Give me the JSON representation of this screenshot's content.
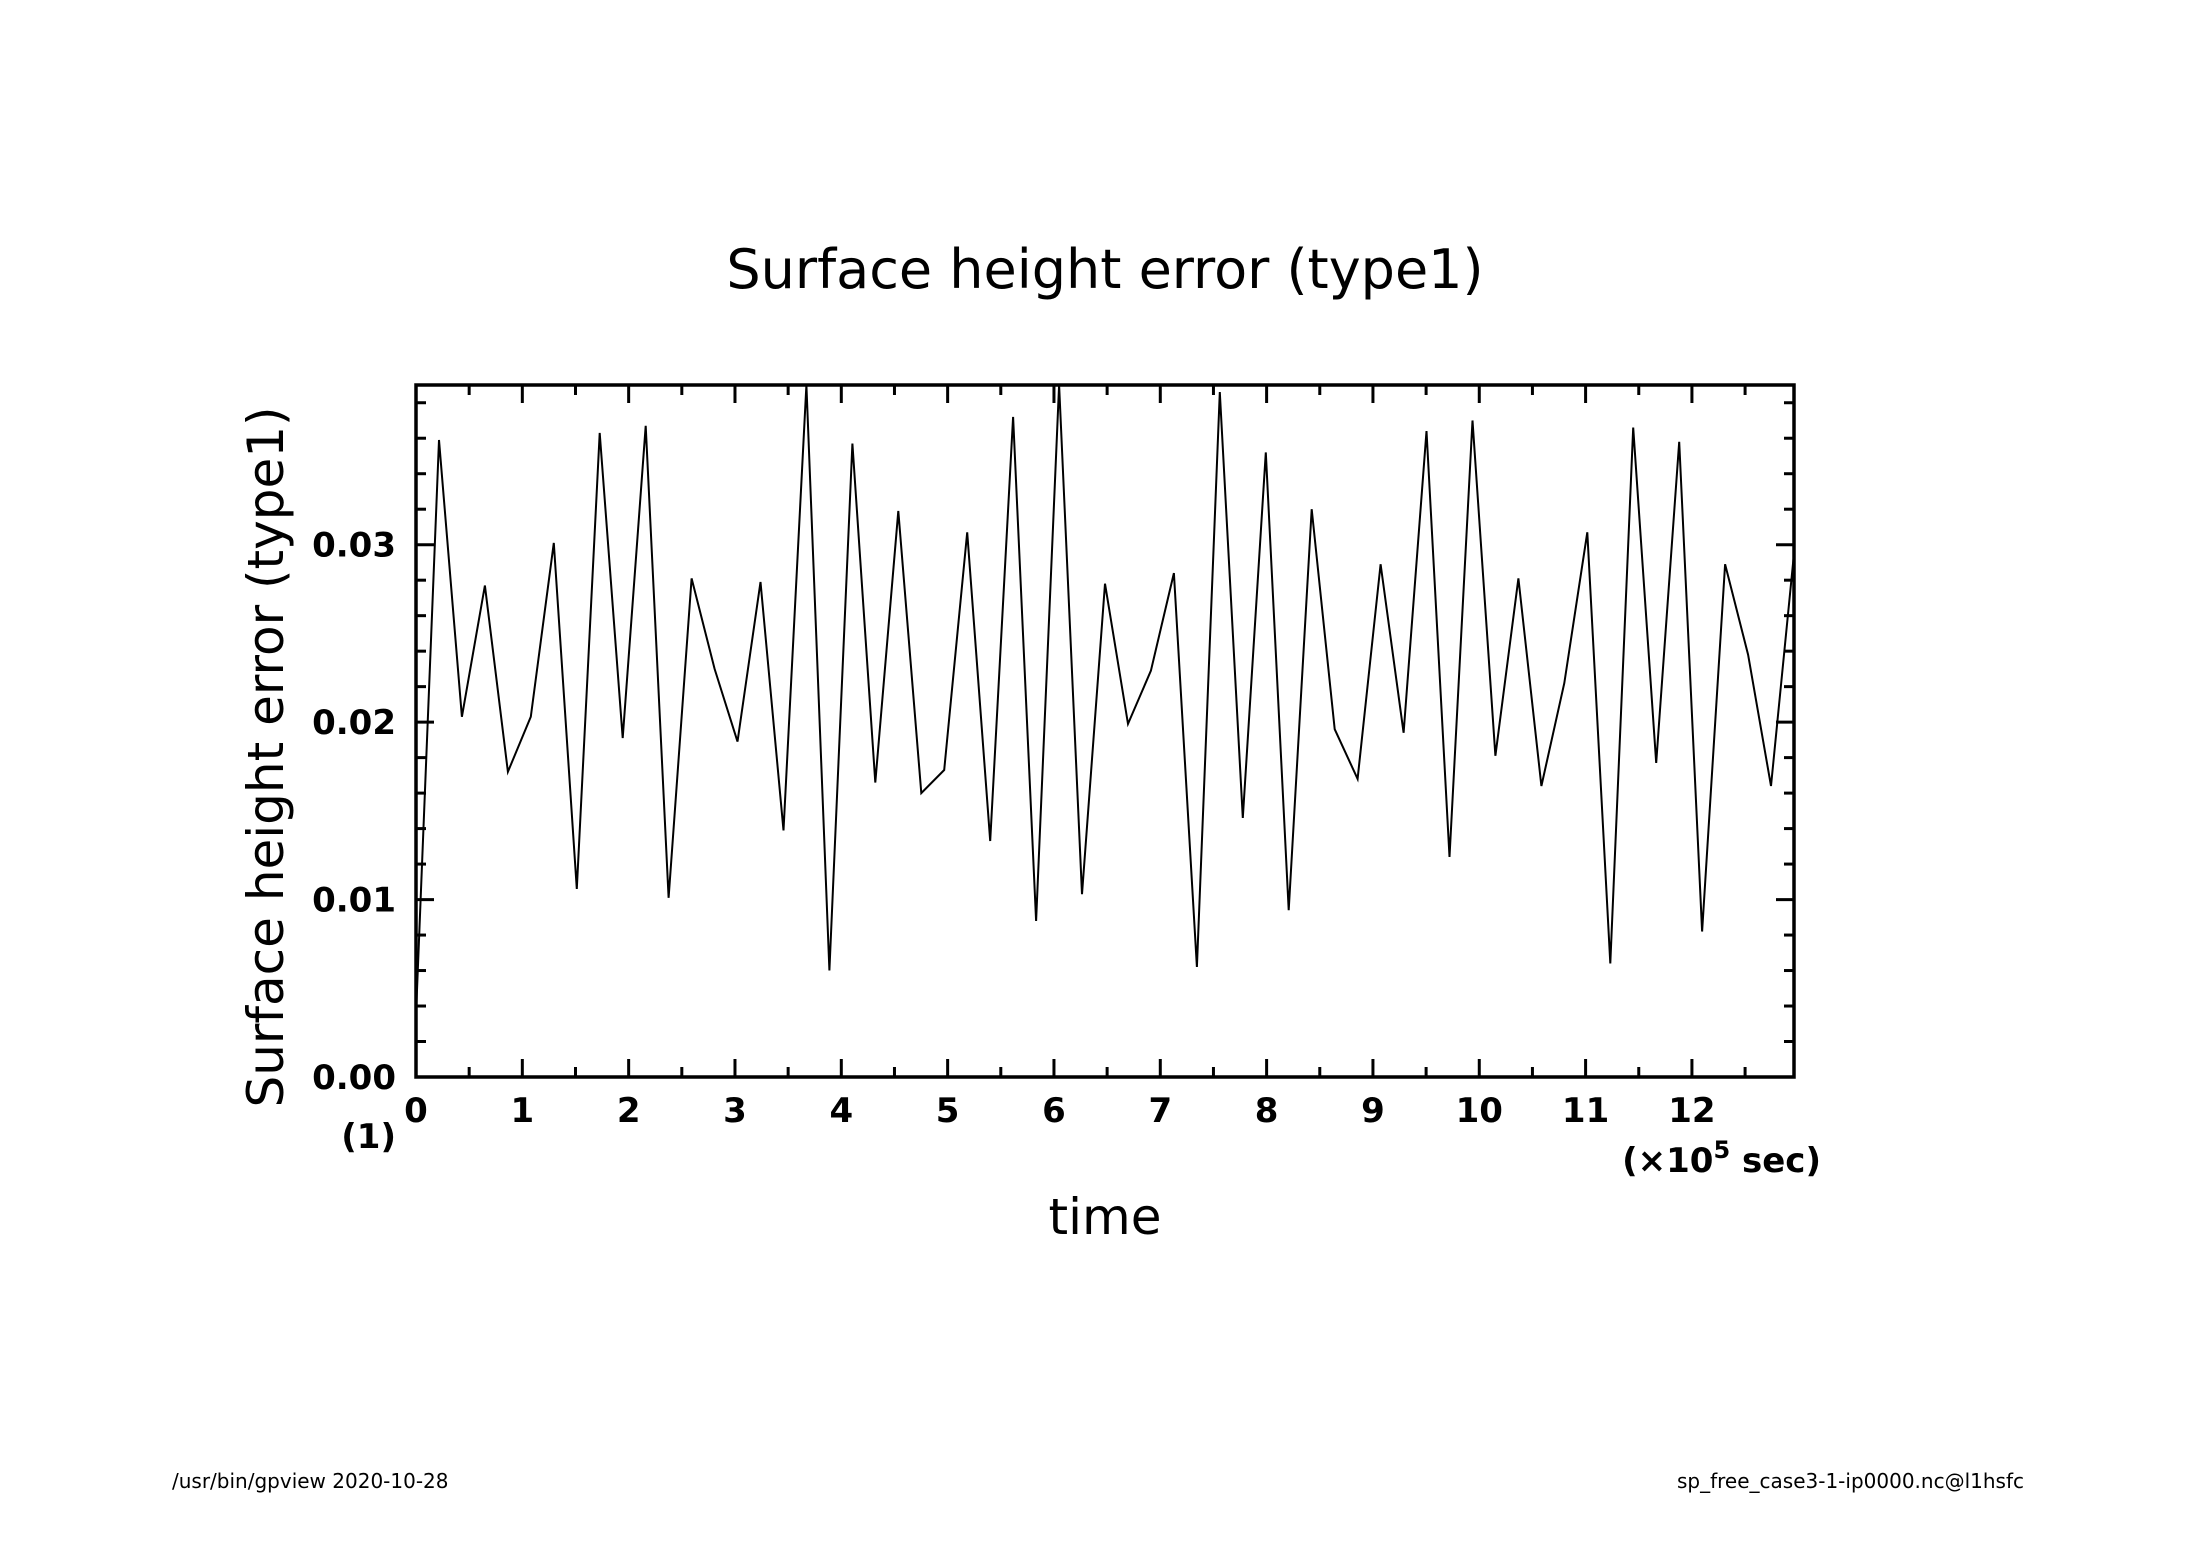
{
  "chart_data": {
    "type": "line",
    "title": "Surface height error (type1)",
    "xlabel": "time",
    "ylabel": "Surface height error (type1)",
    "x_unit_label_prefix": "(×10",
    "x_unit_label_exp": "5",
    "x_unit_label_suffix": " sec)",
    "y_unit_label": "(1)",
    "xlim": [
      0,
      12.96
    ],
    "ylim": [
      0,
      0.039
    ],
    "x_ticks": [
      "0",
      "1",
      "2",
      "3",
      "4",
      "5",
      "6",
      "7",
      "8",
      "9",
      "10",
      "11",
      "12"
    ],
    "y_ticks": [
      "0.00",
      "0.01",
      "0.02",
      "0.03"
    ],
    "grid": false,
    "series": [
      {
        "x": [
          0,
          0.216,
          0.432,
          0.648,
          0.864,
          1.08,
          1.296,
          1.512,
          1.728,
          1.944,
          2.16,
          2.376,
          2.592,
          2.808,
          3.024,
          3.24,
          3.456,
          3.672,
          3.888,
          4.104,
          4.32,
          4.536,
          4.752,
          4.968,
          5.184,
          5.4,
          5.616,
          5.832,
          6.048,
          6.264,
          6.48,
          6.696,
          6.912,
          7.128,
          7.344,
          7.56,
          7.776,
          7.992,
          8.208,
          8.424,
          8.64,
          8.856,
          9.072,
          9.288,
          9.504,
          9.72,
          9.936,
          10.152,
          10.368,
          10.584,
          10.8,
          11.016,
          11.232,
          11.448,
          11.664,
          11.88,
          12.096,
          12.312,
          12.528,
          12.744,
          12.96
        ],
        "y": [
          0.0035,
          0.0359,
          0.0203,
          0.0277,
          0.0172,
          0.0203,
          0.0301,
          0.0106,
          0.0363,
          0.0191,
          0.0367,
          0.0101,
          0.0281,
          0.023,
          0.0189,
          0.0279,
          0.0139,
          0.039,
          0.006,
          0.0357,
          0.0166,
          0.0319,
          0.016,
          0.0173,
          0.0307,
          0.0133,
          0.0372,
          0.0088,
          0.039,
          0.0103,
          0.0278,
          0.0199,
          0.0229,
          0.0284,
          0.0062,
          0.0386,
          0.0146,
          0.0352,
          0.0094,
          0.032,
          0.0196,
          0.0168,
          0.0289,
          0.0194,
          0.0364,
          0.0124,
          0.037,
          0.0181,
          0.0281,
          0.0164,
          0.0222,
          0.0307,
          0.0064,
          0.0366,
          0.0177,
          0.0358,
          0.0082,
          0.0289,
          0.0238,
          0.0164,
          0.0295
        ]
      }
    ]
  },
  "footer": {
    "left": "/usr/bin/gpview   2020-10-28",
    "right": "sp_free_case3-1-ip0000.nc@l1hsfc"
  }
}
